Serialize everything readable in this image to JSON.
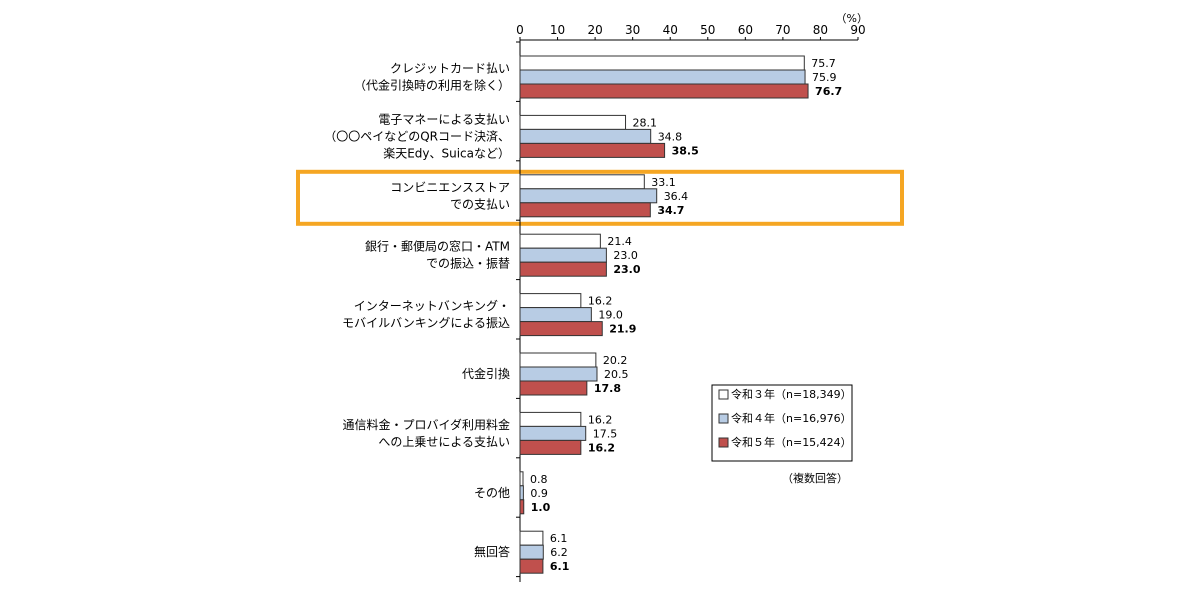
{
  "chart_data": {
    "type": "bar",
    "orientation": "horizontal",
    "unit_label": "（%）",
    "note": "（複数回答）",
    "xlim": [
      0,
      90
    ],
    "ticks": [
      0,
      10,
      20,
      30,
      40,
      50,
      60,
      70,
      80,
      90
    ],
    "highlight_category_index": 2,
    "highlight_color": "#f5a623",
    "categories": [
      [
        "クレジットカード払い",
        "（代金引換時の利用を除く）"
      ],
      [
        "電子マネーによる支払い",
        "（〇〇ペイなどのQRコード決済、",
        "楽天Edy、Suicaなど）"
      ],
      [
        "コンビニエンスストア",
        "での支払い"
      ],
      [
        "銀行・郵便局の窓口・ATM",
        "での振込・振替"
      ],
      [
        "インターネットバンキング・",
        "モバイルバンキングによる振込"
      ],
      [
        "代金引換"
      ],
      [
        "通信料金・プロバイダ利用料金",
        "への上乗せによる支払い"
      ],
      [
        "その他"
      ],
      [
        "無回答"
      ]
    ],
    "series": [
      {
        "name": "令和３年（n=18,349）",
        "color": "#ffffff",
        "values": [
          75.7,
          28.1,
          33.1,
          21.4,
          16.2,
          20.2,
          16.2,
          0.8,
          6.1
        ]
      },
      {
        "name": "令和４年（n=16,976）",
        "color": "#b8cce4",
        "values": [
          75.9,
          34.8,
          36.4,
          23.0,
          19.0,
          20.5,
          17.5,
          0.9,
          6.2
        ]
      },
      {
        "name": "令和５年（n=15,424）",
        "color": "#c0504d",
        "values": [
          76.7,
          38.5,
          34.7,
          23.0,
          21.9,
          17.8,
          16.2,
          1.0,
          6.1
        ]
      }
    ],
    "legend_placement": "bottom-right"
  }
}
